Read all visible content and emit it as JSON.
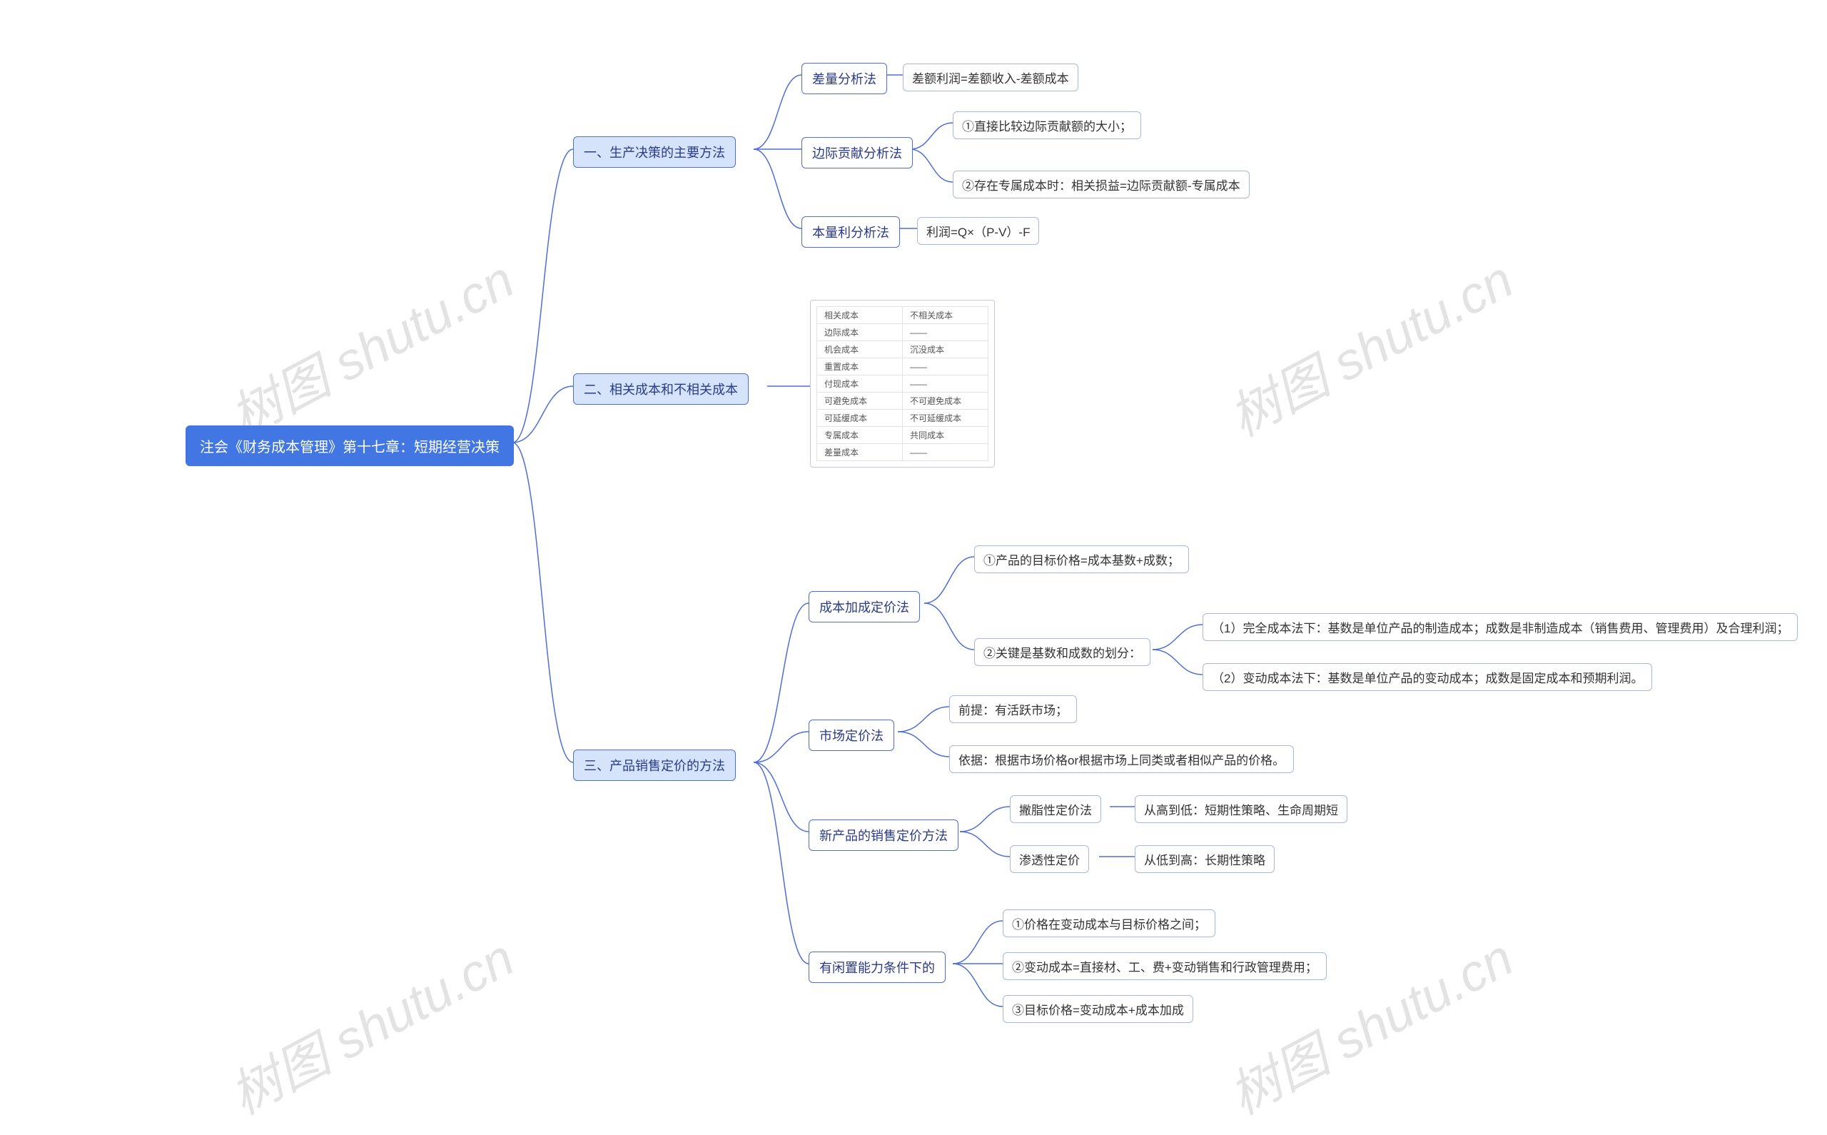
{
  "colors": {
    "root_bg": "#4176e3",
    "root_text": "#ffffff",
    "l1_bg": "#d5e4fb",
    "l1_border": "#4e6fd6",
    "l1_text": "#2a3a8a",
    "l2_bg": "#ffffff",
    "l2_border": "#4e6fd6",
    "l3_border": "#aab7e2",
    "connector": "#4e6fd6",
    "watermark": "rgba(200,200,200,0.5)",
    "table_border": "#e0e2e8"
  },
  "typography": {
    "root_fontsize": 20,
    "l1_fontsize": 18,
    "l2_fontsize": 18,
    "l3_fontsize": 17,
    "table_fontsize": 12,
    "watermark_fontsize": 72
  },
  "watermark_text": "树图 shutu.cn",
  "root": {
    "label": "注会《财务成本管理》第十七章：短期经营决策"
  },
  "section1": {
    "label": "一、生产决策的主要方法",
    "a": {
      "label": "差量分析法",
      "leaf": "差额利润=差额收入-差额成本"
    },
    "b": {
      "label": "边际贡献分析法",
      "leaf1": "①直接比较边际贡献额的大小；",
      "leaf2": "②存在专属成本时：相关损益=边际贡献额-专属成本"
    },
    "c": {
      "label": "本量利分析法",
      "leaf": "利润=Q×（P-V）-F"
    }
  },
  "section2": {
    "label": "二、相关成本和不相关成本",
    "table": {
      "rows": [
        [
          "相关成本",
          "不相关成本"
        ],
        [
          "边际成本",
          "——"
        ],
        [
          "机会成本",
          "沉没成本"
        ],
        [
          "重置成本",
          "——"
        ],
        [
          "付现成本",
          "——"
        ],
        [
          "可避免成本",
          "不可避免成本"
        ],
        [
          "可延缓成本",
          "不可延缓成本"
        ],
        [
          "专属成本",
          "共同成本"
        ],
        [
          "差量成本",
          "——"
        ]
      ]
    }
  },
  "section3": {
    "label": "三、产品销售定价的方法",
    "a": {
      "label": "成本加成定价法",
      "leaf1": "①产品的目标价格=成本基数+成数；",
      "sub": {
        "label": "②关键是基数和成数的划分：",
        "leaf1": "（1）完全成本法下：基数是单位产品的制造成本；成数是非制造成本（销售费用、管理费用）及合理利润；",
        "leaf2": "（2）变动成本法下：基数是单位产品的变动成本；成数是固定成本和预期利润。"
      }
    },
    "b": {
      "label": "市场定价法",
      "leaf1": "前提：有活跃市场；",
      "leaf2": "依据：根据市场价格or根据市场上同类或者相似产品的价格。"
    },
    "c": {
      "label": "新产品的销售定价方法",
      "sub1": {
        "label": "撇脂性定价法",
        "leaf": "从高到低：短期性策略、生命周期短"
      },
      "sub2": {
        "label": "渗透性定价",
        "leaf": "从低到高：长期性策略"
      }
    },
    "d": {
      "label": "有闲置能力条件下的",
      "leaf1": "①价格在变动成本与目标价格之间；",
      "leaf2": "②变动成本=直接材、工、费+变动销售和行政管理费用；",
      "leaf3": "③目标价格=变动成本+成本加成"
    }
  }
}
